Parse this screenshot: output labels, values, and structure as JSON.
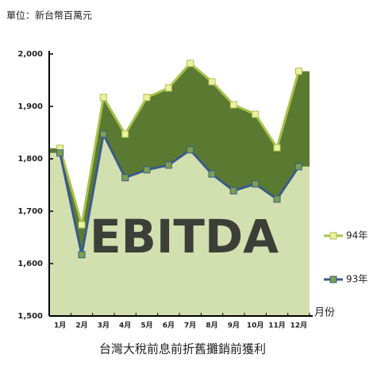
{
  "chart_data": {
    "type": "line",
    "unit_label": "單位：新台幣百萬元",
    "title": "台灣大稅前息前折舊攤銷前獲利",
    "watermark": "EBITDA",
    "x_label": "月份",
    "categories": [
      "1月",
      "2月",
      "3月",
      "4月",
      "5月",
      "6月",
      "7月",
      "8月",
      "9月",
      "10月",
      "11月",
      "12月"
    ],
    "series": [
      {
        "name": "94年",
        "color": "#a8c04a",
        "marker_color": "#eef0a0",
        "fill": "#5a7a32",
        "values": [
          1820,
          1674,
          1917,
          1847,
          1917,
          1935,
          1982,
          1947,
          1903,
          1885,
          1821,
          1967
        ]
      },
      {
        "name": "93年",
        "color": "#3a5a8a",
        "marker_color": "#7aa050",
        "fill": "#d2dfae",
        "values": [
          1811,
          1617,
          1847,
          1764,
          1779,
          1788,
          1817,
          1771,
          1739,
          1752,
          1723,
          1785
        ]
      }
    ],
    "ylim": [
      1500,
      2000
    ],
    "yticks": [
      {
        "value": 1500,
        "label": "1,500"
      },
      {
        "value": 1600,
        "label": "1,600"
      },
      {
        "value": 1700,
        "label": "1,700"
      },
      {
        "value": 1800,
        "label": "1,800"
      },
      {
        "value": 1900,
        "label": "1,900"
      },
      {
        "value": 2000,
        "label": "2,000"
      }
    ],
    "legend": "right"
  }
}
